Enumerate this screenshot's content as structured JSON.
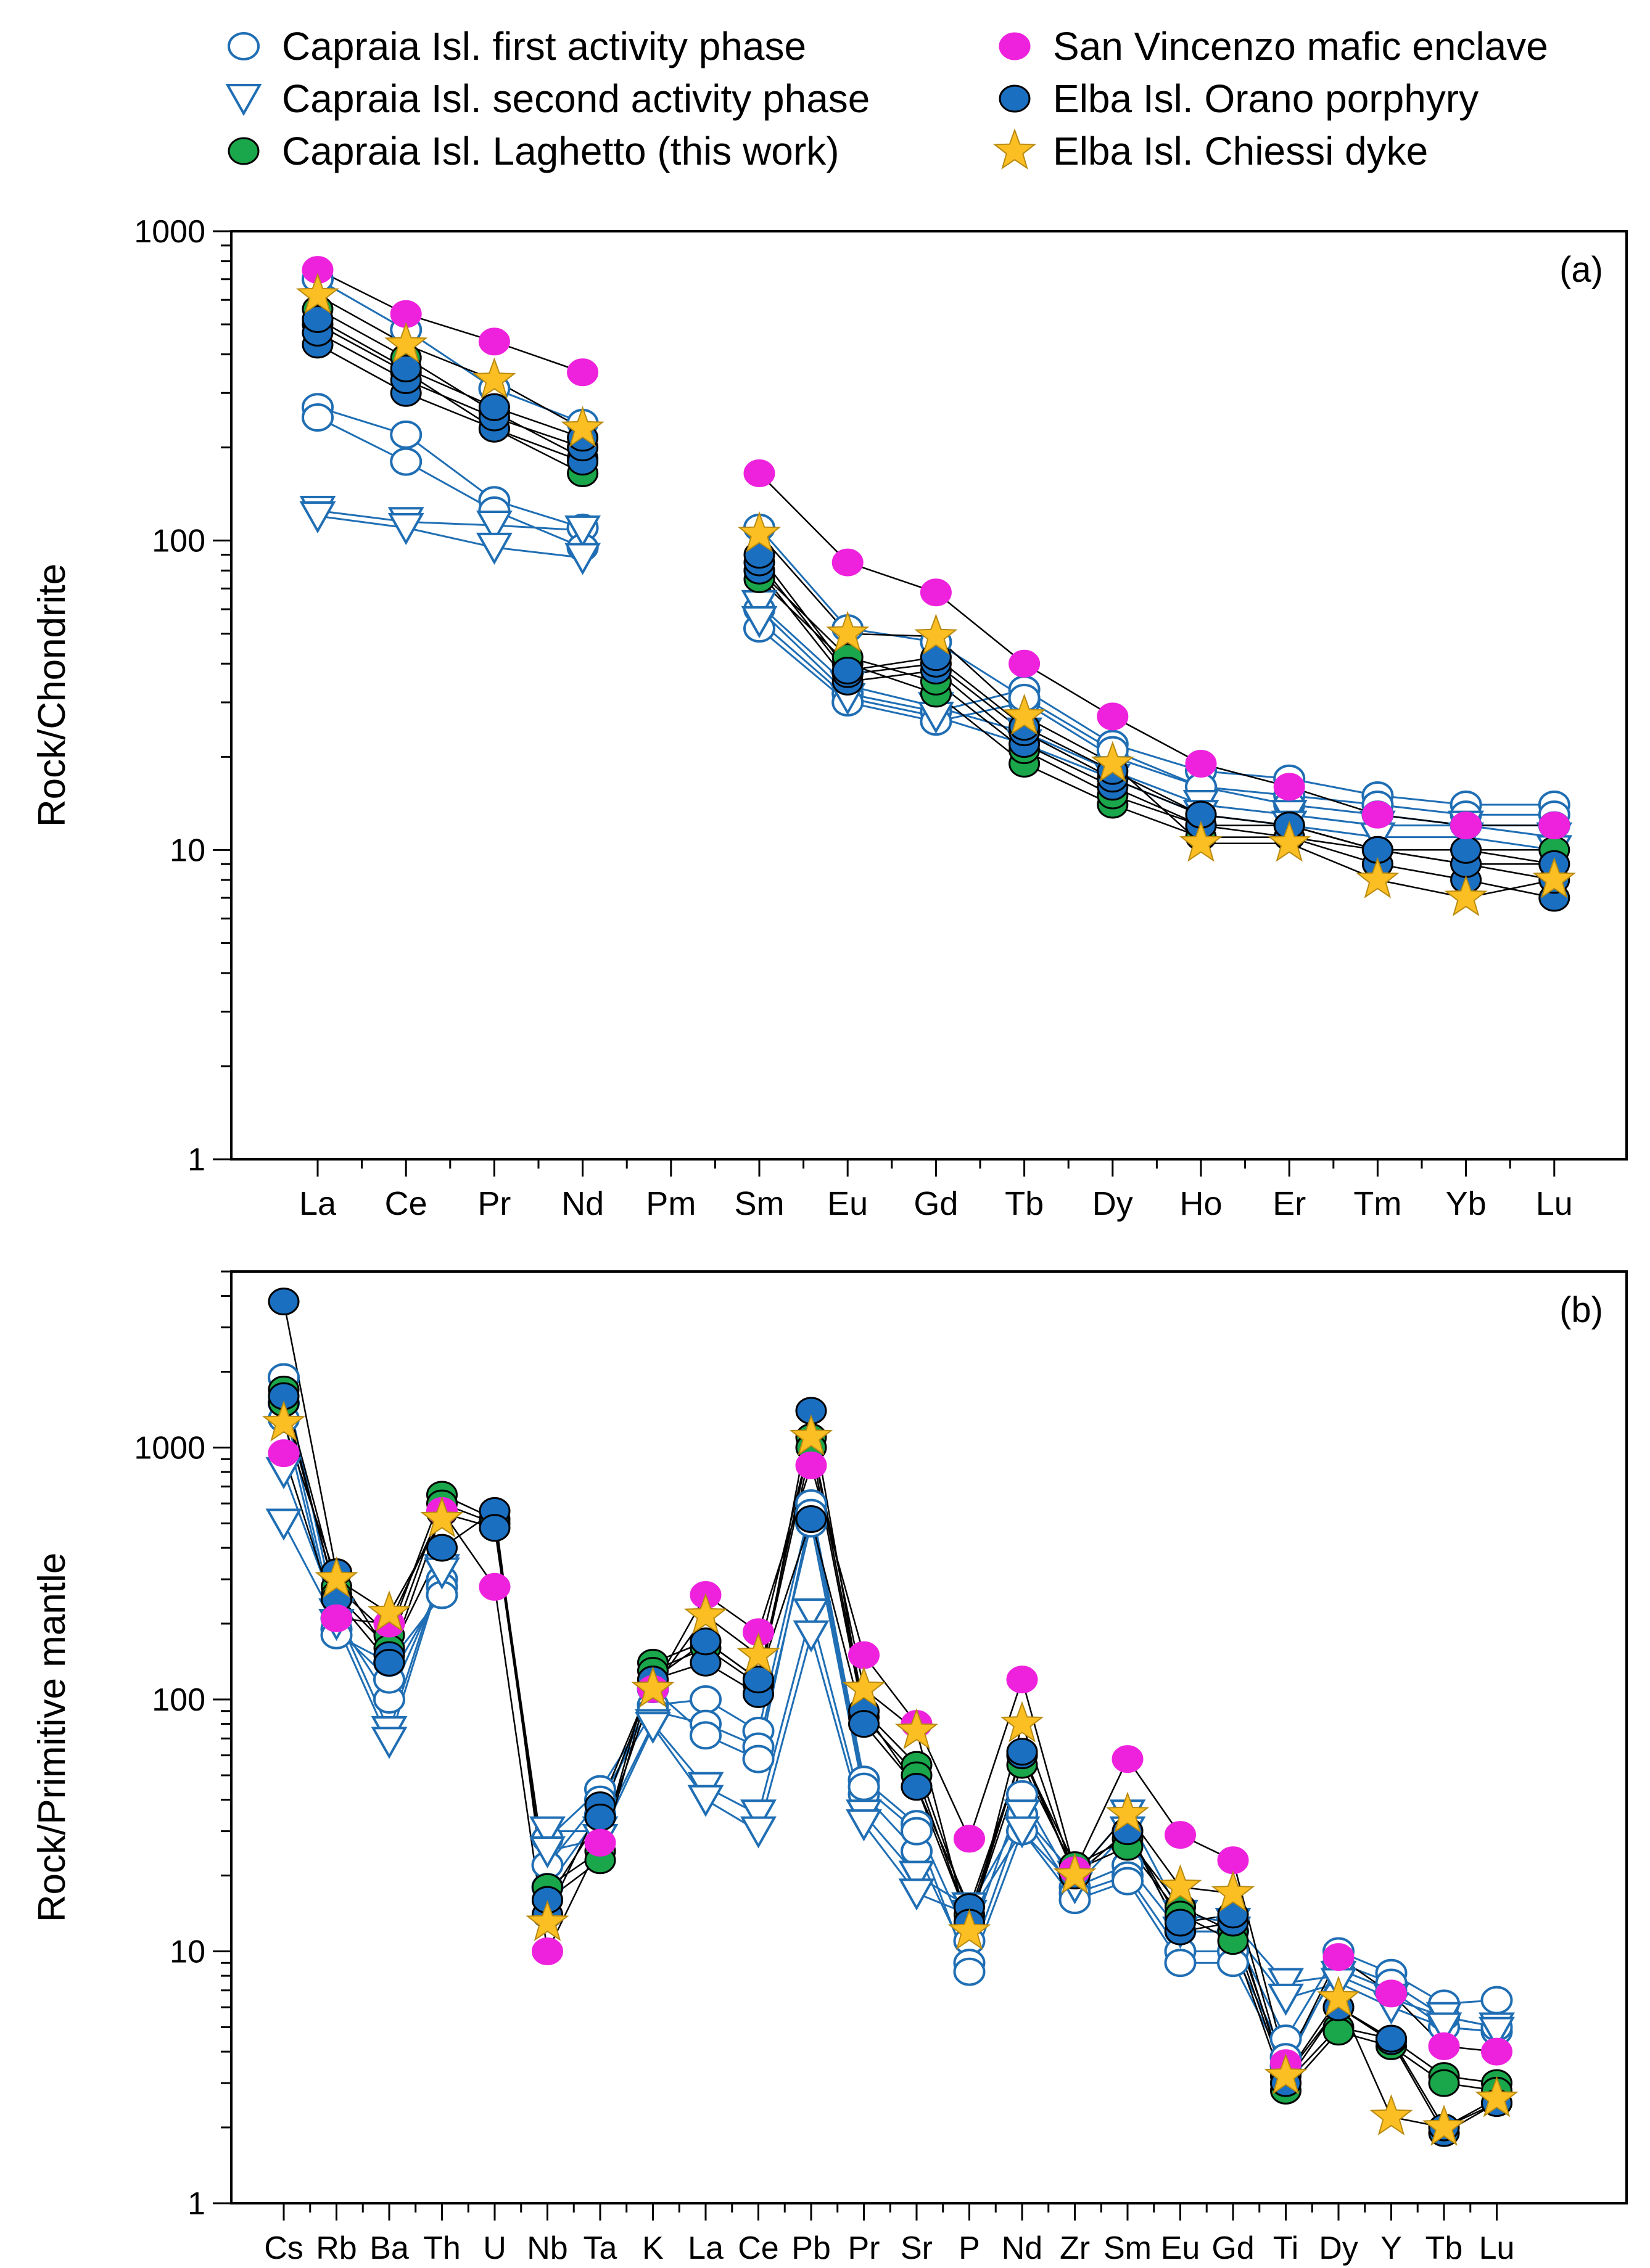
{
  "colors": {
    "capraia_first": "#1f6eb4",
    "capraia_second": "#1f6eb4",
    "laghetto_fill": "#1aa64a",
    "san_vincenzo_fill": "#ee22dd",
    "orano_fill": "#1a6fc0",
    "chiessi_fill": "#fbbf24",
    "marker_edge": "#000000",
    "line_black": "#000000",
    "line_blue": "#1f6eb4",
    "axis": "#000000"
  },
  "legend": {
    "items": [
      {
        "label": "Capraia Isl. first activity phase",
        "marker": "open-circle-icon",
        "color": "#1f6eb4"
      },
      {
        "label": "Capraia Isl. second activity phase",
        "marker": "open-triangle-down-icon",
        "color": "#1f6eb4"
      },
      {
        "label": "Capraia Isl. Laghetto (this work)",
        "marker": "filled-circle-icon",
        "color": "#1aa64a"
      },
      {
        "label": "San Vincenzo mafic  enclave",
        "marker": "filled-circle-icon",
        "color": "#ee22dd"
      },
      {
        "label": "Elba Isl. Orano porphyry",
        "marker": "filled-circle-icon",
        "color": "#1a6fc0"
      },
      {
        "label": "Elba Isl. Chiessi dyke",
        "marker": "star-icon",
        "color": "#fbbf24"
      }
    ]
  },
  "chart_data": [
    {
      "type": "line",
      "panel_label": "(a)",
      "ylabel": "Rock/Chondrite",
      "yscale": "log",
      "ylim": [
        1,
        1000
      ],
      "yticks": [
        "1",
        "10",
        "100",
        "1000"
      ],
      "categories": [
        "La",
        "Ce",
        "Pr",
        "Nd",
        "Pm",
        "Sm",
        "Eu",
        "Gd",
        "Tb",
        "Dy",
        "Ho",
        "Er",
        "Tm",
        "Yb",
        "Lu"
      ],
      "series": [
        {
          "name": "Capraia Isl. first activity phase",
          "style": "first",
          "values": [
            270,
            220,
            135,
            110,
            null,
            60,
            32,
            28,
            33,
            22,
            18,
            17,
            15,
            14,
            14
          ]
        },
        {
          "name": "Capraia Isl. first activity phase",
          "style": "first",
          "values": [
            250,
            180,
            125,
            95,
            null,
            52,
            30,
            26,
            30,
            20,
            16,
            15,
            14,
            13,
            13
          ]
        },
        {
          "name": "Capraia Isl. first activity phase",
          "style": "first",
          "values": [
            700,
            480,
            310,
            240,
            null,
            110,
            52,
            47,
            31,
            21,
            16,
            14,
            13,
            12,
            12
          ]
        },
        {
          "name": "Capraia Isl. second activity phase",
          "style": "second",
          "values": [
            125,
            115,
            112,
            108,
            null,
            62,
            34,
            29,
            24,
            18,
            14,
            13,
            12,
            12,
            11
          ]
        },
        {
          "name": "Capraia Isl. second activity phase",
          "style": "second",
          "values": [
            120,
            110,
            95,
            88,
            null,
            55,
            31,
            27,
            22,
            17,
            13,
            12,
            11,
            11,
            10
          ]
        },
        {
          "name": "Capraia Isl. Laghetto (this work)",
          "style": "laghetto",
          "values": [
            500,
            350,
            230,
            165,
            null,
            75,
            40,
            32,
            19,
            14,
            11,
            11,
            10,
            9,
            9
          ]
        },
        {
          "name": "Capraia Isl. Laghetto (this work)",
          "style": "laghetto",
          "values": [
            560,
            390,
            260,
            185,
            null,
            80,
            42,
            35,
            21,
            15,
            12,
            12,
            10,
            10,
            10
          ]
        },
        {
          "name": "San Vincenzo mafic  enclave",
          "style": "sanv",
          "values": [
            750,
            540,
            440,
            350,
            null,
            165,
            85,
            68,
            40,
            27,
            19,
            16,
            13,
            12,
            12
          ]
        },
        {
          "name": "Elba Isl. Orano porphyry",
          "style": "orano",
          "values": [
            430,
            300,
            230,
            180,
            null,
            80,
            35,
            38,
            22,
            16,
            12,
            11,
            9,
            8,
            7
          ]
        },
        {
          "name": "Elba Isl. Orano porphyry",
          "style": "orano",
          "values": [
            470,
            330,
            250,
            200,
            null,
            85,
            37,
            40,
            24,
            17,
            13,
            12,
            10,
            9,
            8
          ]
        },
        {
          "name": "Elba Isl. Orano porphyry",
          "style": "orano",
          "values": [
            520,
            360,
            270,
            215,
            null,
            90,
            38,
            42,
            25,
            18,
            13,
            12,
            10,
            10,
            9
          ]
        },
        {
          "name": "Elba Isl. Chiessi dyke",
          "style": "chiessi",
          "values": [
            620,
            430,
            330,
            230,
            null,
            105,
            50,
            49,
            27,
            19,
            10.5,
            10.5,
            8,
            7,
            8
          ]
        }
      ]
    },
    {
      "type": "line",
      "panel_label": "(b)",
      "ylabel": "Rock/Primitive mantle",
      "yscale": "log",
      "ylim": [
        1,
        5000
      ],
      "yticks": [
        "1",
        "10",
        "100",
        "1000"
      ],
      "categories": [
        "Cs",
        "Rb",
        "Ba",
        "Th",
        "U",
        "Nb",
        "Ta",
        "K",
        "La",
        "Ce",
        "Pb",
        "Pr",
        "Sr",
        "P",
        "Nd",
        "Zr",
        "Sm",
        "Eu",
        "Gd",
        "Ti",
        "Dy",
        "Y",
        "Tb",
        "Lu"
      ],
      "series": [
        {
          "name": "Capraia Isl. first activity phase",
          "style": "first",
          "values": [
            1900,
            210,
            100,
            300,
            null,
            28,
            44,
            95,
            100,
            75,
            600,
            48,
            32,
            11,
            42,
            18,
            22,
            12,
            12,
            4.5,
            10,
            8.2,
            6.2,
            6.4
          ]
        },
        {
          "name": "Capraia Isl. first activity phase",
          "style": "first",
          "values": [
            1500,
            190,
            120,
            280,
            null,
            22,
            40,
            90,
            80,
            65,
            500,
            42,
            25,
            9,
            35,
            17,
            20,
            10,
            10,
            3.8,
            8.5,
            7,
            5,
            4.8
          ]
        },
        {
          "name": "Capraia Isl. first activity phase",
          "style": "first",
          "values": [
            1300,
            180,
            140,
            260,
            null,
            18,
            35,
            110,
            72,
            58,
            550,
            45,
            30,
            8.3,
            30,
            16,
            19,
            9,
            9,
            3.5,
            9,
            7.5,
            5.5,
            5
          ]
        },
        {
          "name": "Capraia Isl. second activity phase",
          "style": "second",
          "values": [
            800,
            220,
            75,
            330,
            null,
            30,
            30,
            80,
            45,
            35,
            220,
            35,
            20,
            15,
            35,
            20,
            35,
            14,
            13,
            7.5,
            8,
            6.5,
            5.5,
            5
          ]
        },
        {
          "name": "Capraia Isl. second activity phase",
          "style": "second",
          "values": [
            500,
            200,
            68,
            320,
            null,
            25,
            28,
            78,
            40,
            30,
            180,
            32,
            17,
            14,
            30,
            18,
            30,
            12,
            12,
            6.5,
            7.5,
            6,
            5,
            4.8
          ]
        },
        {
          "name": "Capraia Isl. Laghetto (this work)",
          "style": "laghetto",
          "values": [
            1700,
            280,
            180,
            650,
            520,
            18,
            25,
            140,
            170,
            120,
            1100,
            90,
            55,
            14,
            60,
            22,
            28,
            15,
            12,
            3,
            5,
            4.5,
            3.2,
            3
          ]
        },
        {
          "name": "Capraia Isl. Laghetto (this work)",
          "style": "laghetto",
          "values": [
            1500,
            260,
            160,
            600,
            500,
            16,
            23,
            130,
            160,
            115,
            1000,
            85,
            50,
            13,
            55,
            21,
            26,
            14,
            11,
            2.8,
            4.8,
            4.2,
            3,
            2.8
          ]
        },
        {
          "name": "San Vincenzo mafic  enclave",
          "style": "sanv",
          "values": [
            950,
            210,
            200,
            560,
            280,
            10,
            27,
            110,
            260,
            185,
            850,
            150,
            80,
            28,
            120,
            21,
            58,
            29,
            23,
            3.6,
            9.5,
            6.8,
            4.2,
            4
          ]
        },
        {
          "name": "Elba Isl. Orano porphyry",
          "style": "orano",
          "values": [
            3800,
            320,
            150,
            400,
            560,
            14,
            38,
            120,
            140,
            105,
            1400,
            90,
            45,
            15,
            60,
            20,
            30,
            12,
            13,
            3.2,
            6,
            4.4,
            1.9,
            2.5
          ]
        },
        {
          "name": "Elba Isl. Orano porphyry",
          "style": "orano",
          "values": [
            1600,
            250,
            140,
            550,
            480,
            16,
            34,
            120,
            170,
            120,
            520,
            80,
            45,
            13,
            62,
            20,
            30,
            13,
            14,
            3,
            6,
            4.5,
            2,
            2.5
          ]
        },
        {
          "name": "Elba Isl. Chiessi dyke",
          "style": "chiessi",
          "values": [
            1250,
            300,
            220,
            520,
            null,
            13,
            null,
            110,
            215,
            150,
            1100,
            110,
            75,
            12,
            80,
            20,
            35,
            18,
            17,
            3.2,
            6.5,
            2.2,
            2,
            2.6
          ]
        }
      ]
    }
  ]
}
